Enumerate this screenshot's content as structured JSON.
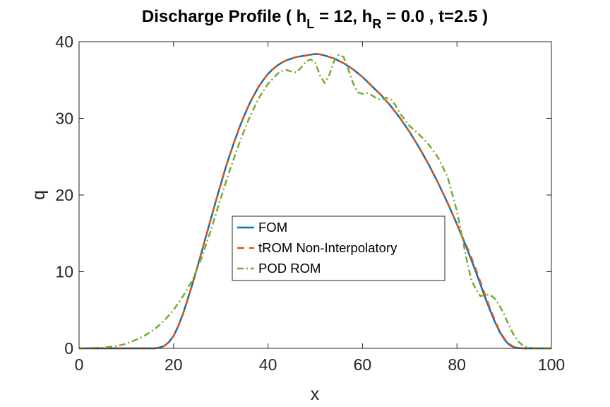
{
  "chart_data": {
    "type": "line",
    "title": {
      "prefix": "Discharge Profile ( h",
      "sub_left": "L",
      "middle": " = 12, h",
      "sub_right": "R",
      "suffix": " = 0.0 , t=2.5 )"
    },
    "xlabel": "x",
    "ylabel": "q",
    "xlim": [
      0,
      100
    ],
    "ylim": [
      0,
      40
    ],
    "xticks": [
      "0",
      "20",
      "40",
      "60",
      "80",
      "100"
    ],
    "yticks": [
      "0",
      "10",
      "20",
      "30",
      "40"
    ],
    "legend_position": "center",
    "series": [
      {
        "name": "FOM",
        "color": "#0072BD",
        "style": "solid",
        "x": [
          0,
          5,
          10,
          14,
          16,
          17,
          18,
          19,
          20,
          21,
          22,
          23,
          24,
          25,
          26,
          27,
          28,
          29,
          30,
          31,
          32,
          33,
          34,
          35,
          36,
          37,
          38,
          39,
          40,
          41,
          42,
          43,
          44,
          45,
          46,
          47,
          48,
          49,
          50,
          51,
          52,
          53,
          54,
          55,
          56,
          57,
          58,
          59,
          60,
          61,
          62,
          63,
          64,
          65,
          66,
          67,
          68,
          69,
          70,
          71,
          72,
          73,
          74,
          75,
          76,
          77,
          78,
          79,
          80,
          81,
          82,
          83,
          84,
          85,
          86,
          87,
          88,
          89,
          90,
          91,
          92,
          93,
          94,
          95,
          96,
          97,
          98,
          100
        ],
        "y": [
          0,
          0,
          0,
          0,
          0,
          0.1,
          0.3,
          0.8,
          1.6,
          2.9,
          4.5,
          6.4,
          8.4,
          10.5,
          12.7,
          14.9,
          17.1,
          19.3,
          21.4,
          23.5,
          25.4,
          27.2,
          28.9,
          30.4,
          31.8,
          33.0,
          34.1,
          35.0,
          35.8,
          36.4,
          36.9,
          37.3,
          37.6,
          37.8,
          38.0,
          38.1,
          38.2,
          38.3,
          38.4,
          38.35,
          38.2,
          38.0,
          37.8,
          37.5,
          37.2,
          36.8,
          36.4,
          35.9,
          35.4,
          34.8,
          34.2,
          33.6,
          33.0,
          32.3,
          31.6,
          30.8,
          30.0,
          29.1,
          28.2,
          27.2,
          26.2,
          25.1,
          24.0,
          22.8,
          21.6,
          20.3,
          19.0,
          17.6,
          16.2,
          14.7,
          13.2,
          11.6,
          10.0,
          8.3,
          6.6,
          5.0,
          3.5,
          2.2,
          1.2,
          0.5,
          0.15,
          0.05,
          0,
          0,
          0,
          0,
          0,
          0
        ]
      },
      {
        "name": "tROM Non-Interpolatory",
        "color": "#D95319",
        "style": "dashed",
        "x": [
          0,
          5,
          10,
          14,
          16,
          17,
          18,
          19,
          20,
          21,
          22,
          23,
          24,
          25,
          26,
          27,
          28,
          29,
          30,
          31,
          32,
          33,
          34,
          35,
          36,
          37,
          38,
          39,
          40,
          41,
          42,
          43,
          44,
          45,
          46,
          47,
          48,
          49,
          50,
          51,
          52,
          53,
          54,
          55,
          56,
          57,
          58,
          59,
          60,
          61,
          62,
          63,
          64,
          65,
          66,
          67,
          68,
          69,
          70,
          71,
          72,
          73,
          74,
          75,
          76,
          77,
          78,
          79,
          80,
          81,
          82,
          83,
          84,
          85,
          86,
          87,
          88,
          89,
          90,
          91,
          92,
          93,
          94,
          95,
          96,
          97,
          98,
          100
        ],
        "y": [
          0,
          0,
          0,
          0,
          0,
          0.1,
          0.3,
          0.8,
          1.6,
          2.9,
          4.5,
          6.4,
          8.4,
          10.5,
          12.7,
          14.9,
          17.1,
          19.3,
          21.4,
          23.5,
          25.4,
          27.2,
          28.9,
          30.4,
          31.8,
          33.0,
          34.1,
          35.0,
          35.8,
          36.4,
          36.9,
          37.3,
          37.6,
          37.8,
          38.0,
          38.1,
          38.2,
          38.3,
          38.4,
          38.35,
          38.2,
          38.0,
          37.8,
          37.5,
          37.2,
          36.8,
          36.4,
          35.9,
          35.4,
          34.8,
          34.2,
          33.6,
          33.0,
          32.3,
          31.6,
          30.8,
          30.0,
          29.1,
          28.2,
          27.2,
          26.2,
          25.1,
          24.0,
          22.8,
          21.6,
          20.3,
          19.0,
          17.6,
          16.2,
          14.7,
          13.4,
          11.9,
          10.3,
          8.6,
          6.9,
          5.2,
          3.7,
          2.3,
          1.3,
          0.6,
          0.2,
          0.05,
          0,
          0,
          0,
          0,
          0,
          0
        ]
      },
      {
        "name": "POD ROM",
        "color": "#77AC30",
        "style": "dashdot",
        "x": [
          0,
          5,
          8,
          10,
          12,
          14,
          16,
          18,
          20,
          22,
          24,
          26,
          28,
          30,
          32,
          34,
          36,
          38,
          40,
          42,
          43,
          44,
          45,
          46,
          47,
          48,
          49,
          50,
          51,
          52,
          53,
          54,
          55,
          56,
          57,
          58,
          59,
          60,
          61,
          62,
          63,
          64,
          65,
          66,
          67,
          68,
          69,
          70,
          72,
          74,
          76,
          78,
          80,
          82,
          83,
          84,
          85,
          86,
          87,
          88,
          89,
          90,
          91,
          92,
          93,
          94,
          95,
          96,
          97,
          98,
          100
        ],
        "y": [
          0,
          0.1,
          0.3,
          0.6,
          1.1,
          1.7,
          2.5,
          3.6,
          5.0,
          6.8,
          8.9,
          11.9,
          15.6,
          19.6,
          23.4,
          26.9,
          30.0,
          32.6,
          34.5,
          35.8,
          36.2,
          36.3,
          36.1,
          36.0,
          36.6,
          37.4,
          37.7,
          37.3,
          35.6,
          34.6,
          35.7,
          37.5,
          38.3,
          38.0,
          36.4,
          34.6,
          33.4,
          33.2,
          33.3,
          33.0,
          32.6,
          32.4,
          32.7,
          32.5,
          31.7,
          30.6,
          29.8,
          29.0,
          27.9,
          26.6,
          24.9,
          22.4,
          17.9,
          11.8,
          9.0,
          7.7,
          6.8,
          7.0,
          7.0,
          6.5,
          5.6,
          4.4,
          3.0,
          1.8,
          0.9,
          0.35,
          0.12,
          0.05,
          0,
          0,
          0
        ]
      }
    ]
  }
}
